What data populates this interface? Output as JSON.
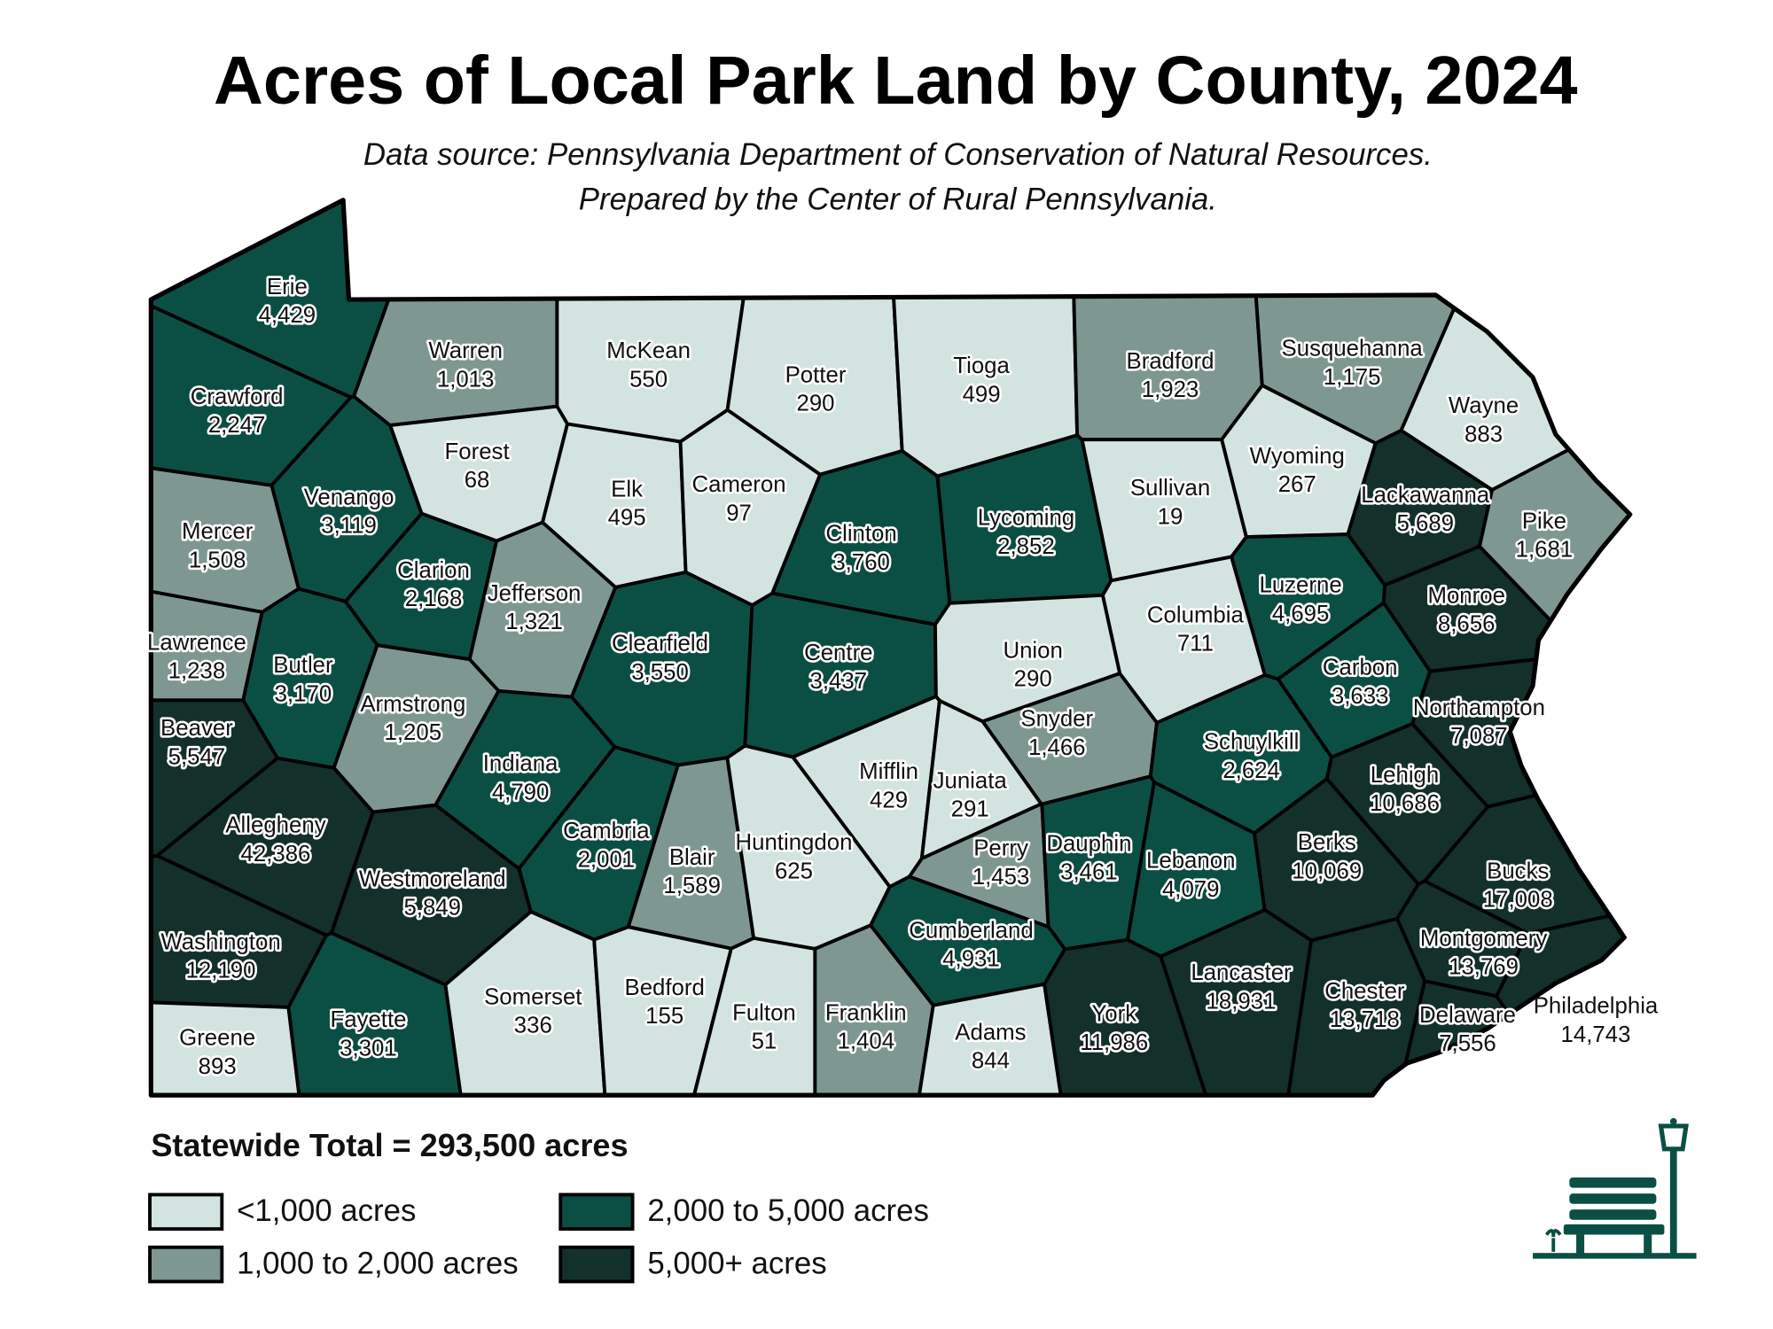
{
  "title": "Acres of Local Park Land by County, 2024",
  "subtitle": [
    "Data source: Pennsylvania Department of Conservation of Natural Resources.",
    "Prepared by the Center of Rural Pennsylvania."
  ],
  "counties": [
    {
      "name": "Erie",
      "acres": "4,429",
      "color": "#0b4f44"
    },
    {
      "name": "Warren",
      "acres": "1,013",
      "color": "#7f9791"
    },
    {
      "name": "McKean",
      "acres": "550",
      "color": "#d3e3e0"
    },
    {
      "name": "Potter",
      "acres": "290",
      "color": "#d3e3e0"
    },
    {
      "name": "Tioga",
      "acres": "499",
      "color": "#d3e3e0"
    },
    {
      "name": "Bradford",
      "acres": "1,923",
      "color": "#7f9791"
    },
    {
      "name": "Susquehanna",
      "acres": "1,175",
      "color": "#7f9791"
    },
    {
      "name": "Wayne",
      "acres": "883",
      "color": "#d3e3e0"
    },
    {
      "name": "Crawford",
      "acres": "2,247",
      "color": "#0b4f44"
    },
    {
      "name": "Forest",
      "acres": "68",
      "color": "#d3e3e0"
    },
    {
      "name": "Elk",
      "acres": "495",
      "color": "#d3e3e0"
    },
    {
      "name": "Cameron",
      "acres": "97",
      "color": "#d3e3e0"
    },
    {
      "name": "Wyoming",
      "acres": "267",
      "color": "#d3e3e0"
    },
    {
      "name": "Sullivan",
      "acres": "19",
      "color": "#d3e3e0"
    },
    {
      "name": "Lackawanna",
      "acres": "5,689",
      "color": "#13302a"
    },
    {
      "name": "Pike",
      "acres": "1,681",
      "color": "#7f9791"
    },
    {
      "name": "Venango",
      "acres": "3,119",
      "color": "#0b4f44"
    },
    {
      "name": "Mercer",
      "acres": "1,508",
      "color": "#7f9791"
    },
    {
      "name": "Clinton",
      "acres": "3,760",
      "color": "#0b4f44"
    },
    {
      "name": "Lycoming",
      "acres": "2,852",
      "color": "#0b4f44"
    },
    {
      "name": "Clarion",
      "acres": "2,168",
      "color": "#0b4f44"
    },
    {
      "name": "Jefferson",
      "acres": "1,321",
      "color": "#7f9791"
    },
    {
      "name": "Clearfield",
      "acres": "3,550",
      "color": "#0b4f44"
    },
    {
      "name": "Centre",
      "acres": "3,437",
      "color": "#0b4f44"
    },
    {
      "name": "Columbia",
      "acres": "711",
      "color": "#d3e3e0"
    },
    {
      "name": "Luzerne",
      "acres": "4,695",
      "color": "#0b4f44"
    },
    {
      "name": "Monroe",
      "acres": "8,656",
      "color": "#13302a"
    },
    {
      "name": "Lawrence",
      "acres": "1,238",
      "color": "#7f9791"
    },
    {
      "name": "Butler",
      "acres": "3,170",
      "color": "#0b4f44"
    },
    {
      "name": "Union",
      "acres": "290",
      "color": "#d3e3e0"
    },
    {
      "name": "Carbon",
      "acres": "3,633",
      "color": "#0b4f44"
    },
    {
      "name": "Armstrong",
      "acres": "1,205",
      "color": "#7f9791"
    },
    {
      "name": "Snyder",
      "acres": "1,466",
      "color": "#7f9791"
    },
    {
      "name": "Northampton",
      "acres": "7,087",
      "color": "#13302a"
    },
    {
      "name": "Beaver",
      "acres": "5,547",
      "color": "#13302a"
    },
    {
      "name": "Schuylkill",
      "acres": "2,624",
      "color": "#0b4f44"
    },
    {
      "name": "Indiana",
      "acres": "4,790",
      "color": "#0b4f44"
    },
    {
      "name": "Mifflin",
      "acres": "429",
      "color": "#d3e3e0"
    },
    {
      "name": "Juniata",
      "acres": "291",
      "color": "#d3e3e0"
    },
    {
      "name": "Lehigh",
      "acres": "10,686",
      "color": "#13302a"
    },
    {
      "name": "Allegheny",
      "acres": "42,386",
      "color": "#13302a"
    },
    {
      "name": "Cambria",
      "acres": "2,001",
      "color": "#0b4f44"
    },
    {
      "name": "Blair",
      "acres": "1,589",
      "color": "#7f9791"
    },
    {
      "name": "Huntingdon",
      "acres": "625",
      "color": "#d3e3e0"
    },
    {
      "name": "Perry",
      "acres": "1,453",
      "color": "#7f9791"
    },
    {
      "name": "Dauphin",
      "acres": "3,461",
      "color": "#0b4f44"
    },
    {
      "name": "Lebanon",
      "acres": "4,079",
      "color": "#0b4f44"
    },
    {
      "name": "Berks",
      "acres": "10,069",
      "color": "#13302a"
    },
    {
      "name": "Westmoreland",
      "acres": "5,849",
      "color": "#13302a"
    },
    {
      "name": "Bucks",
      "acres": "17,008",
      "color": "#13302a"
    },
    {
      "name": "Washington",
      "acres": "12,190",
      "color": "#13302a"
    },
    {
      "name": "Cumberland",
      "acres": "4,931",
      "color": "#0b4f44"
    },
    {
      "name": "Montgomery",
      "acres": "13,769",
      "color": "#13302a"
    },
    {
      "name": "Lancaster",
      "acres": "18,931",
      "color": "#13302a"
    },
    {
      "name": "Chester",
      "acres": "13,718",
      "color": "#13302a"
    },
    {
      "name": "Somerset",
      "acres": "336",
      "color": "#d3e3e0"
    },
    {
      "name": "Bedford",
      "acres": "155",
      "color": "#d3e3e0"
    },
    {
      "name": "Fulton",
      "acres": "51",
      "color": "#d3e3e0"
    },
    {
      "name": "Franklin",
      "acres": "1,404",
      "color": "#7f9791"
    },
    {
      "name": "Adams",
      "acres": "844",
      "color": "#d3e3e0"
    },
    {
      "name": "York",
      "acres": "11,986",
      "color": "#13302a"
    },
    {
      "name": "Delaware",
      "acres": "7,556",
      "color": "#13302a"
    },
    {
      "name": "Philadelphia",
      "acres": "14,743",
      "color": "#13302a"
    },
    {
      "name": "Fayette",
      "acres": "3,301",
      "color": "#0b4f44"
    },
    {
      "name": "Greene",
      "acres": "893",
      "color": "#d3e3e0"
    }
  ],
  "statewide_total": "Statewide Total = 293,500 acres",
  "legend": [
    {
      "label": "<1,000 acres",
      "color": "#d3e3e0"
    },
    {
      "label": "1,000 to 2,000 acres",
      "color": "#7f9791"
    },
    {
      "label": "2,000 to 5,000 acres",
      "color": "#0b4f44"
    },
    {
      "label": "5,000+ acres",
      "color": "#13302a"
    }
  ]
}
